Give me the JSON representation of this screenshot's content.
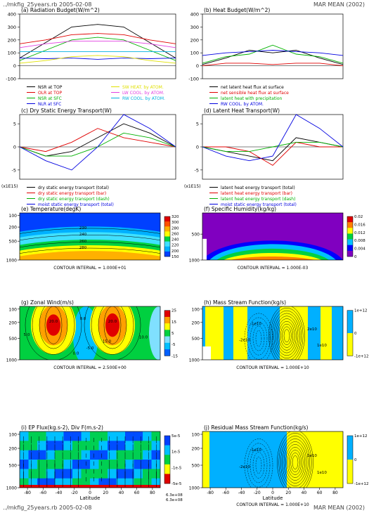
{
  "header": {
    "left": "../mkfig_25years.rb  2005-02-08",
    "right": "MAR MEAN (2002)"
  },
  "footer": {
    "left": "../mkfig_25years.rb  2005-02-08",
    "right": "MAR MEAN (2002)"
  },
  "chart_data": [
    {
      "id": "a",
      "type": "line",
      "title": "(a) Radiation Budget(W/m^2)",
      "xlim": [
        -90,
        90
      ],
      "ylim": [
        -100,
        400
      ],
      "yticks": [
        "-100",
        "0",
        "100",
        "200",
        "300",
        "400"
      ],
      "series": [
        {
          "name": "NSR at TOP",
          "color": "#000000",
          "x": [
            -90,
            -60,
            -30,
            0,
            30,
            60,
            90
          ],
          "y": [
            60,
            180,
            300,
            320,
            300,
            180,
            60
          ]
        },
        {
          "name": "OLR at TOP",
          "color": "#e00000",
          "x": [
            -90,
            -60,
            -30,
            0,
            30,
            60,
            90
          ],
          "y": [
            170,
            200,
            240,
            250,
            240,
            200,
            170
          ]
        },
        {
          "name": "NSR at SFC",
          "color": "#00b000",
          "x": [
            -90,
            -60,
            -30,
            0,
            30,
            60,
            90
          ],
          "y": [
            40,
            120,
            200,
            220,
            200,
            120,
            40
          ]
        },
        {
          "name": "NLR at SFC",
          "color": "#0000e0",
          "x": [
            -90,
            -60,
            -30,
            0,
            30,
            60,
            90
          ],
          "y": [
            60,
            55,
            60,
            50,
            60,
            55,
            60
          ]
        },
        {
          "name": "SW HEAT. by ATOM.",
          "color": "#e0e000",
          "x": [
            -90,
            -60,
            -30,
            0,
            30,
            60,
            90
          ],
          "y": [
            20,
            40,
            70,
            80,
            70,
            40,
            20
          ]
        },
        {
          "name": "LW COOL. by ATOM.",
          "color": "#e040e0",
          "x": [
            -90,
            -60,
            -30,
            0,
            30,
            60,
            90
          ],
          "y": [
            140,
            170,
            190,
            190,
            190,
            170,
            140
          ]
        },
        {
          "name": "RW COOL. by ATOM.",
          "color": "#00b0e0",
          "x": [
            -90,
            -60,
            -30,
            0,
            30,
            60,
            90
          ],
          "y": [
            110,
            110,
            110,
            110,
            110,
            110,
            110
          ]
        }
      ]
    },
    {
      "id": "b",
      "type": "line",
      "title": "(b) Heat Budget(W/m^2)",
      "xlim": [
        -90,
        90
      ],
      "ylim": [
        -100,
        400
      ],
      "yticks": [
        "-100",
        "0",
        "100",
        "200",
        "300",
        "400"
      ],
      "series": [
        {
          "name": "net latent heat flux at surface",
          "color": "#000000",
          "x": [
            -90,
            -60,
            -30,
            0,
            30,
            60,
            90
          ],
          "y": [
            10,
            60,
            120,
            100,
            120,
            60,
            10
          ]
        },
        {
          "name": "net sensible heat flux at surface",
          "color": "#e00000",
          "x": [
            -90,
            -60,
            -30,
            0,
            30,
            60,
            90
          ],
          "y": [
            0,
            20,
            20,
            10,
            20,
            20,
            0
          ]
        },
        {
          "name": "latent heat with precipitation",
          "color": "#00b000",
          "x": [
            -90,
            -60,
            -30,
            0,
            30,
            60,
            90
          ],
          "y": [
            20,
            70,
            90,
            160,
            90,
            70,
            20
          ]
        },
        {
          "name": "RW COOL. by ATOM.",
          "color": "#0000e0",
          "x": [
            -90,
            -60,
            -30,
            0,
            30,
            60,
            90
          ],
          "y": [
            80,
            100,
            110,
            120,
            110,
            100,
            80
          ]
        }
      ]
    },
    {
      "id": "c",
      "type": "line",
      "title": "(c) Dry Static Energy Transport(W)",
      "scale_label": "(x1E15)",
      "xlim": [
        -90,
        90
      ],
      "ylim": [
        -7,
        7
      ],
      "yticks": [
        "-5",
        "0",
        "5"
      ],
      "series": [
        {
          "name": "dry static energy transport (total)",
          "color": "#000000",
          "x": [
            -90,
            -60,
            -30,
            0,
            30,
            60,
            90
          ],
          "y": [
            0,
            -2,
            -1,
            2,
            5,
            3,
            0
          ]
        },
        {
          "name": "dry static energy transport (bar)",
          "color": "#e00000",
          "x": [
            -90,
            -60,
            -30,
            0,
            30,
            60,
            90
          ],
          "y": [
            0,
            -1,
            1,
            4,
            2,
            1,
            0
          ]
        },
        {
          "name": "dry static energy transport (dash)",
          "color": "#00b000",
          "x": [
            -90,
            -60,
            -30,
            0,
            30,
            60,
            90
          ],
          "y": [
            0,
            -2,
            -2,
            0,
            3,
            2,
            0
          ]
        },
        {
          "name": "moist static energy transport (total)",
          "color": "#0000e0",
          "x": [
            -90,
            -60,
            -30,
            0,
            30,
            60,
            90
          ],
          "y": [
            0,
            -3,
            -5,
            0,
            7,
            4,
            0
          ]
        }
      ]
    },
    {
      "id": "d",
      "type": "line",
      "title": "(d) Latent Heat Transport(W)",
      "scale_label": "(x1E15)",
      "xlim": [
        -90,
        90
      ],
      "ylim": [
        -7,
        7
      ],
      "yticks": [
        "-5",
        "0",
        "5"
      ],
      "series": [
        {
          "name": "latent heat energy transport (total)",
          "color": "#000000",
          "x": [
            -90,
            -60,
            -30,
            0,
            30,
            60,
            90
          ],
          "y": [
            0,
            -1,
            -2,
            -3,
            2,
            1,
            0
          ]
        },
        {
          "name": "latent heat energy transport (bar)",
          "color": "#e00000",
          "x": [
            -90,
            -60,
            -30,
            0,
            30,
            60,
            90
          ],
          "y": [
            0,
            0,
            -1,
            -4,
            1,
            0,
            0
          ]
        },
        {
          "name": "latent heat energy transport (dash)",
          "color": "#00b000",
          "x": [
            -90,
            -60,
            -30,
            0,
            30,
            60,
            90
          ],
          "y": [
            0,
            -1,
            -1,
            0,
            1,
            1,
            0
          ]
        },
        {
          "name": "moist static energy transport (total)",
          "color": "#0000e0",
          "x": [
            -90,
            -60,
            -30,
            0,
            30,
            60,
            90
          ],
          "y": [
            0,
            -2,
            -3,
            -2,
            7,
            4,
            0
          ]
        }
      ]
    },
    {
      "id": "e",
      "type": "heatmap",
      "title": "(e) Temperature(degK)",
      "contour_interval": "CONTOUR INTERVAL = 1.000E+01",
      "yticks": [
        "100",
        "200",
        "500",
        "1000"
      ],
      "colorbar": [
        "150",
        "200",
        "220",
        "240",
        "260",
        "280",
        "300",
        "320"
      ],
      "colors": [
        "#0040ff",
        "#00b0ff",
        "#40e0ff",
        "#00d040",
        "#ffff00",
        "#ffb000",
        "#ff5000",
        "#e00000"
      ],
      "contour_labels": [
        "230",
        "240",
        "260",
        "280"
      ]
    },
    {
      "id": "f",
      "type": "heatmap",
      "title": "(f) Specific Humidity(kg/kg)",
      "contour_interval": "CONTOUR INTERVAL = 1.000E-03",
      "yticks": [
        "500",
        "1000"
      ],
      "colorbar": [
        "0",
        "0.004",
        "0.008",
        "0.012",
        "0.016",
        "0.02"
      ],
      "colors": [
        "#8000c0",
        "#0000ff",
        "#00c0ff",
        "#00d040",
        "#ffff00",
        "#ff8000",
        "#e00000"
      ]
    },
    {
      "id": "g",
      "type": "heatmap",
      "title": "(g) Zonal Wind(m/s)",
      "contour_interval": "CONTOUR INTERVAL = 2.500E+00",
      "yticks": [
        "100",
        "200",
        "500",
        "1000"
      ],
      "colorbar": [
        "-15",
        "-5",
        "5",
        "15",
        "25"
      ],
      "colors": [
        "#0060ff",
        "#00c0ff",
        "#80e0ff",
        "#00d040",
        "#ffff00",
        "#ffa000",
        "#e00000"
      ],
      "contour_labels": [
        "20.0",
        "20.0",
        "15.0",
        "5.0",
        "0.0",
        "-5.0",
        "10.0",
        "0.0"
      ]
    },
    {
      "id": "h",
      "type": "heatmap",
      "title": "(h) Mass Stream Function(kg/s)",
      "contour_interval": "CONTOUR INTERVAL = 1.000E+10",
      "yticks": [
        "100",
        "200",
        "500",
        "1000"
      ],
      "colorbar": [
        "1e+12",
        "0",
        "-1e+12"
      ],
      "colors": [
        "#ffff00",
        "#00b0ff"
      ],
      "contour_labels": [
        "-1e10",
        "-2e10",
        "2e10",
        "1e10"
      ]
    },
    {
      "id": "i",
      "type": "heatmap",
      "title": "(i) EP Flux(kg.s-2), Div F(m.s-2)",
      "xlabel": "Latitude",
      "yticks": [
        "100",
        "200",
        "500",
        "1000"
      ],
      "xticks": [
        "-80",
        "-60",
        "-40",
        "-20",
        "0",
        "20",
        "40",
        "60",
        "80"
      ],
      "colorbar": [
        "5e-5",
        "1e-5",
        "-1e-5",
        "-5e-5"
      ],
      "colors": [
        "#e00000",
        "#ffff00",
        "#00d040",
        "#00c0ff",
        "#0040ff"
      ],
      "arrow_scale": [
        "6.3e+08",
        "6.3e+08"
      ]
    },
    {
      "id": "j",
      "type": "heatmap",
      "title": "(j) Residual Mass Stream Function(kg/s)",
      "xlabel": "Latitude",
      "contour_interval": "CONTOUR INTERVAL = 1.000E+10",
      "yticks": [
        "100",
        "200",
        "500",
        "1000"
      ],
      "xticks": [
        "-80",
        "-60",
        "-40",
        "-20",
        "0",
        "20",
        "40",
        "60",
        "80"
      ],
      "colorbar": [
        "1e+12",
        "0",
        "-1e+12"
      ],
      "colors": [
        "#ffff00",
        "#00b0ff"
      ],
      "contour_labels": [
        "-1e10",
        "-2e10",
        "2e10",
        "1e10"
      ]
    }
  ]
}
